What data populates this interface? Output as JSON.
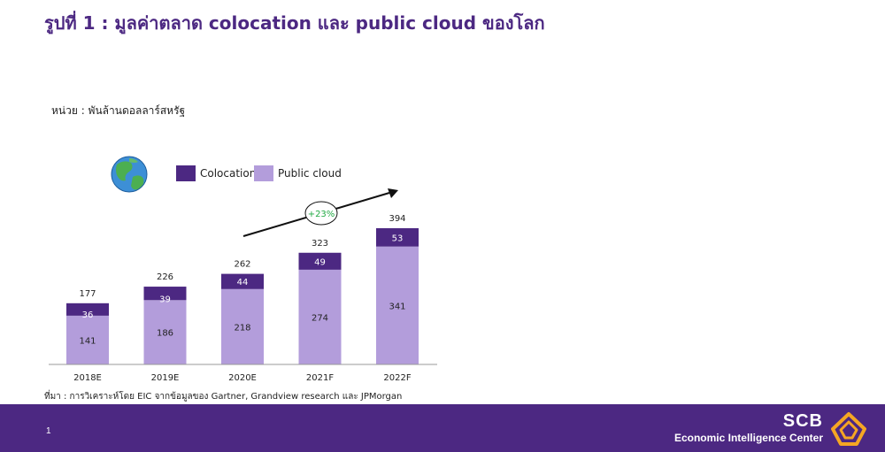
{
  "header": {
    "title": "รูปที่ 1 : มูลค่าตลาด colocation และ public cloud ของโลก",
    "unit": "หน่วย : พันล้านดอลลาร์สหรัฐ"
  },
  "source": "ที่มา : การวิเคราะห์โดย EIC จากข้อมูลของ Gartner, Grandview research และ JPMorgan",
  "growth_label": "+23%",
  "icons": {
    "globe": "globe-icon",
    "logo": "scb-lotus-logo"
  },
  "colors": {
    "colocation": "#4c2882",
    "public_cloud": "#b39ddb",
    "growth_text": "#22aa44",
    "footer": "#4c2882"
  },
  "chart_data": {
    "type": "bar",
    "stacked": true,
    "categories": [
      "2018E",
      "2019E",
      "2020E",
      "2021F",
      "2022F"
    ],
    "series": [
      {
        "name": "Public cloud",
        "values": [
          141,
          186,
          218,
          274,
          341
        ]
      },
      {
        "name": "Colocation",
        "values": [
          36,
          39,
          44,
          49,
          53
        ]
      }
    ],
    "totals": [
      "177",
      "226",
      "262",
      "323",
      "394"
    ],
    "legend": [
      "Colocation",
      "Public cloud"
    ],
    "legend_position": "top",
    "ylim": [
      0,
      394
    ],
    "grid": false
  },
  "footer": {
    "page": "1",
    "brand": "SCB",
    "center": "Economic Intelligence Center"
  }
}
